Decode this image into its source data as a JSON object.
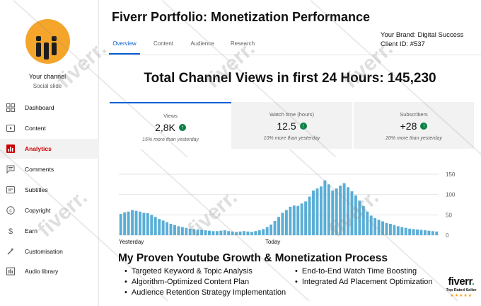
{
  "sidebar": {
    "channel_name": "Your channel",
    "channel_handle": "Social slide",
    "items": [
      {
        "label": "Dashboard",
        "icon": "dashboard-icon"
      },
      {
        "label": "Content",
        "icon": "content-icon"
      },
      {
        "label": "Analytics",
        "icon": "analytics-icon",
        "active": true
      },
      {
        "label": "Comments",
        "icon": "comments-icon"
      },
      {
        "label": "Subtitles",
        "icon": "subtitles-icon"
      },
      {
        "label": "Copyright",
        "icon": "copyright-icon"
      },
      {
        "label": "Earn",
        "icon": "earn-icon"
      },
      {
        "label": "Customisation",
        "icon": "customisation-icon"
      },
      {
        "label": "Audio library",
        "icon": "audio-library-icon"
      }
    ]
  },
  "header": {
    "title": "Fiverr Portfolio: Monetization Performance",
    "brand": "Your Brand: Digital Success",
    "client_id": "Client ID: #537",
    "tabs": [
      "Overview",
      "Content",
      "Audience",
      "Research"
    ],
    "active_tab": "Overview"
  },
  "headline": "Total Channel Views in first 24 Hours: 145,230",
  "metrics": [
    {
      "label": "Views",
      "value": "2,8K",
      "note": "15% more than yesterday"
    },
    {
      "label": "Watch time (hours)",
      "value": "12.5",
      "note": "10% more than yesterday"
    },
    {
      "label": "Subscribers",
      "value": "+28",
      "note": "20% more than yesterday"
    }
  ],
  "chart_data": {
    "type": "bar",
    "x_labels": [
      "Yesterday",
      "Today"
    ],
    "y_ticks": [
      "0",
      "50",
      "100",
      "150"
    ],
    "ylim": [
      0,
      150
    ],
    "color": "#5aaed6",
    "values": [
      52,
      56,
      58,
      62,
      60,
      58,
      55,
      54,
      50,
      45,
      40,
      36,
      32,
      28,
      25,
      22,
      20,
      18,
      16,
      15,
      14,
      13,
      12,
      11,
      10,
      10,
      11,
      12,
      10,
      9,
      8,
      9,
      10,
      9,
      8,
      10,
      12,
      15,
      20,
      26,
      35,
      45,
      55,
      62,
      70,
      73,
      72,
      78,
      83,
      95,
      110,
      115,
      120,
      135,
      125,
      110,
      115,
      122,
      128,
      118,
      108,
      98,
      85,
      72,
      58,
      48,
      42,
      38,
      34,
      30,
      28,
      25,
      22,
      20,
      18,
      16,
      15,
      14,
      13,
      12,
      11,
      10,
      9
    ]
  },
  "process": {
    "title": "My Proven Youtube Growth & Monetization Process",
    "left_items": [
      "Targeted Keyword & Topic Analysis",
      "Algorithm-Optimized Content Plan",
      "Audience Retention Strategy Implementation"
    ],
    "right_items": [
      "End-to-End Watch Time Boosting",
      "Integrated Ad Placement Optimization"
    ]
  },
  "badge": {
    "logo": "fiverr",
    "dot": ".",
    "rating": "Top Rated Seller",
    "stars": "★★★★★"
  },
  "watermark_text": "fiverr."
}
